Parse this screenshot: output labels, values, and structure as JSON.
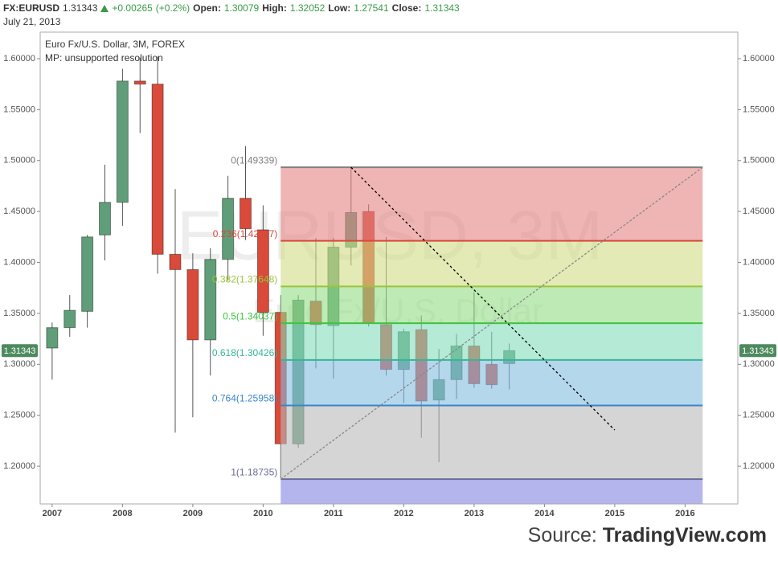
{
  "header": {
    "symbol": "FX:EURUSD",
    "change": "+0.00265",
    "change_pct": "(+0.2%)",
    "open_label": "Open:",
    "high_label": "High:",
    "low_label": "Low:",
    "close_label": "Close:",
    "date": "July 21, 2013"
  },
  "chart_data": {
    "type": "candlestick",
    "title": "Euro Fx/U.S. Dollar, 3M, FOREX",
    "subtitle": "MP: unsupported resolution",
    "watermark": "EURUSD, 3M",
    "watermark_sub": "Euro Fx/U.S. Dollar",
    "x": [
      2007,
      2007.25,
      2007.5,
      2007.75,
      2008,
      2008.25,
      2008.5,
      2008.75,
      2009,
      2009.25,
      2009.5,
      2009.75,
      2010,
      2010.25,
      2010.5,
      2010.75,
      2011,
      2011.25,
      2011.5,
      2011.75,
      2012,
      2012.25,
      2012.5,
      2012.75,
      2013,
      2013.25,
      2013.5
    ],
    "open": [
      1.316,
      1.336,
      1.352,
      1.427,
      1.459,
      1.578,
      1.575,
      1.408,
      1.393,
      1.324,
      1.403,
      1.463,
      1.432,
      1.351,
      1.222,
      1.362,
      1.338,
      1.415,
      1.45,
      1.339,
      1.295,
      1.334,
      1.265,
      1.285,
      1.318,
      1.3,
      1.30079
    ],
    "high": [
      1.341,
      1.368,
      1.427,
      1.496,
      1.59,
      1.601,
      1.602,
      1.472,
      1.409,
      1.414,
      1.485,
      1.514,
      1.456,
      1.368,
      1.368,
      1.424,
      1.424,
      1.494,
      1.457,
      1.425,
      1.335,
      1.348,
      1.315,
      1.33,
      1.371,
      1.332,
      1.32052
    ],
    "low": [
      1.285,
      1.327,
      1.336,
      1.402,
      1.436,
      1.527,
      1.389,
      1.233,
      1.248,
      1.289,
      1.382,
      1.422,
      1.328,
      1.188,
      1.218,
      1.296,
      1.286,
      1.397,
      1.337,
      1.289,
      1.262,
      1.228,
      1.204,
      1.266,
      1.277,
      1.276,
      1.27541
    ],
    "close": [
      1.336,
      1.353,
      1.425,
      1.459,
      1.578,
      1.575,
      1.408,
      1.393,
      1.324,
      1.403,
      1.463,
      1.433,
      1.351,
      1.222,
      1.363,
      1.339,
      1.415,
      1.449,
      1.34,
      1.295,
      1.332,
      1.264,
      1.285,
      1.318,
      1.281,
      1.28,
      1.31343
    ],
    "up_color": "#5f9e78",
    "down_color": "#d94a3a",
    "xlim": [
      2006.83,
      2016.75
    ],
    "xticks": [
      2007,
      2008,
      2009,
      2010,
      2011,
      2012,
      2013,
      2014,
      2015,
      2016
    ],
    "ylim": [
      1.163,
      1.626
    ],
    "yticks": [
      {
        "value": 1.2,
        "label": "1.20000"
      },
      {
        "value": 1.25,
        "label": "1.25000"
      },
      {
        "value": 1.3,
        "label": "1.30000"
      },
      {
        "value": 1.35,
        "label": "1.35000"
      },
      {
        "value": 1.4,
        "label": "1.40000"
      },
      {
        "value": 1.45,
        "label": "1.45000"
      },
      {
        "value": 1.5,
        "label": "1.50000"
      },
      {
        "value": 1.55,
        "label": "1.55000"
      },
      {
        "value": 1.6,
        "label": "1.60000"
      }
    ],
    "fib_x": [
      2010.25,
      2016.25
    ],
    "fib_fill_opacity": 0.6,
    "fib_levels": [
      {
        "value": 1.49339,
        "label": "0(1.49339)",
        "color": "#808080",
        "fill": "#e48484"
      },
      {
        "value": 1.42117,
        "label": "0.236(1.42117)",
        "color": "#d9483b",
        "fill": "#d0dc84"
      },
      {
        "value": 1.37648,
        "label": "0.382(1.37648)",
        "color": "#9cc33b",
        "fill": "#91dc84"
      },
      {
        "value": 1.34037,
        "label": "0.5(1.34037)",
        "color": "#3ec43e",
        "fill": "#84dcbb"
      },
      {
        "value": 1.30426,
        "label": "0.618(1.30426)",
        "color": "#36b596",
        "fill": "#84bcdf"
      },
      {
        "value": 1.25958,
        "label": "0.764(1.25958)",
        "color": "#3b86c6",
        "fill": "#b9b9b9"
      },
      {
        "value": 1.18735,
        "label": "1(1.18735)",
        "color": "#6c6c9a",
        "fill": "#8484e3"
      }
    ],
    "lines": [
      {
        "x": [
          2011.25,
          2015.0
        ],
        "y": [
          1.49339,
          1.2355
        ],
        "color": "#000000",
        "dash": "3,3"
      },
      {
        "x": [
          2010.25,
          2016.25
        ],
        "y": [
          1.18735,
          1.49339
        ],
        "color": "#888888",
        "dash": "3,2"
      }
    ]
  },
  "footer": {
    "source_label": "Source:",
    "source": "TradingView.com"
  }
}
